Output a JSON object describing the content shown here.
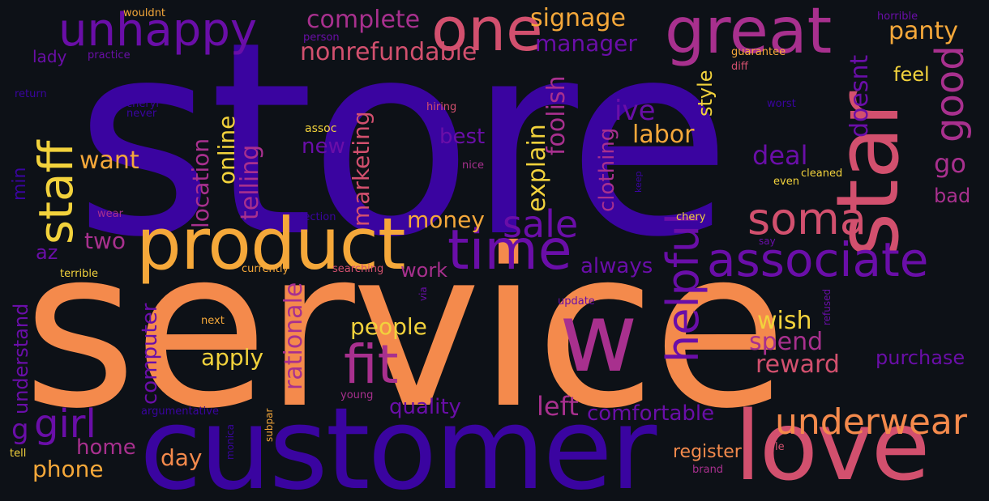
{
  "palette": {
    "background": "#0d1117",
    "deep_purple": "#3a04a0",
    "violet": "#6a0ea8",
    "magenta": "#a8308e",
    "pink": "#d2506e",
    "orange": "#f48a4c",
    "amber": "#f5a83a",
    "yellow": "#f2d23c"
  },
  "words": [
    {
      "text": "store",
      "color": "#3a04a0"
    },
    {
      "text": "service",
      "color": "#f48a4c"
    },
    {
      "text": "customer",
      "color": "#3a04a0"
    },
    {
      "text": "product",
      "color": "#f5a83a"
    },
    {
      "text": "star",
      "color": "#d2506e"
    },
    {
      "text": "love",
      "color": "#d2506e"
    },
    {
      "text": "w",
      "color": "#a8308e"
    },
    {
      "text": "great",
      "color": "#a8308e"
    },
    {
      "text": "one",
      "color": "#d2506e"
    },
    {
      "text": "unhappy",
      "color": "#6a0ea8"
    },
    {
      "text": "staff",
      "color": "#f2d23c"
    },
    {
      "text": "time",
      "color": "#6a0ea8"
    },
    {
      "text": "associate",
      "color": "#6a0ea8"
    },
    {
      "text": "soma",
      "color": "#d2506e"
    },
    {
      "text": "fit",
      "color": "#a8308e"
    },
    {
      "text": "helpful",
      "color": "#6a0ea8"
    },
    {
      "text": "underwear",
      "color": "#f48a4c"
    },
    {
      "text": "sale",
      "color": "#6a0ea8"
    },
    {
      "text": "girl",
      "color": "#6a0ea8"
    },
    {
      "text": "good",
      "color": "#a8308e"
    },
    {
      "text": "complete",
      "color": "#a8308e"
    },
    {
      "text": "signage",
      "color": "#f5a83a"
    },
    {
      "text": "manager",
      "color": "#6a0ea8"
    },
    {
      "text": "nonrefundable",
      "color": "#d2506e"
    },
    {
      "text": "panty",
      "color": "#f5a83a"
    },
    {
      "text": "feel",
      "color": "#f2d23c"
    },
    {
      "text": "doesnt",
      "color": "#6a0ea8"
    },
    {
      "text": "ive",
      "color": "#6a0ea8"
    },
    {
      "text": "labor",
      "color": "#f5a83a"
    },
    {
      "text": "deal",
      "color": "#6a0ea8"
    },
    {
      "text": "go",
      "color": "#a8308e"
    },
    {
      "text": "bad",
      "color": "#a8308e"
    },
    {
      "text": "style",
      "color": "#f2d23c"
    },
    {
      "text": "clothing",
      "color": "#a8308e"
    },
    {
      "text": "explain",
      "color": "#f2d23c"
    },
    {
      "text": "foolish",
      "color": "#a8308e"
    },
    {
      "text": "best",
      "color": "#6a0ea8"
    },
    {
      "text": "new",
      "color": "#6a0ea8"
    },
    {
      "text": "marketing",
      "color": "#d2506e"
    },
    {
      "text": "telling",
      "color": "#a8308e"
    },
    {
      "text": "online",
      "color": "#f2d23c"
    },
    {
      "text": "location",
      "color": "#a8308e"
    },
    {
      "text": "want",
      "color": "#f5a83a"
    },
    {
      "text": "money",
      "color": "#f5a83a"
    },
    {
      "text": "two",
      "color": "#a8308e"
    },
    {
      "text": "az",
      "color": "#6a0ea8"
    },
    {
      "text": "min",
      "color": "#3a04a0"
    },
    {
      "text": "lady",
      "color": "#6a0ea8"
    },
    {
      "text": "practice",
      "color": "#6a0ea8"
    },
    {
      "text": "wouldnt",
      "color": "#f5a83a"
    },
    {
      "text": "person",
      "color": "#6a0ea8"
    },
    {
      "text": "return",
      "color": "#3a04a0"
    },
    {
      "text": "cheryl",
      "color": "#3a04a0"
    },
    {
      "text": "never",
      "color": "#3a04a0"
    },
    {
      "text": "hiring",
      "color": "#d2506e"
    },
    {
      "text": "assoc",
      "color": "#f2d23c"
    },
    {
      "text": "nice",
      "color": "#a8308e"
    },
    {
      "text": "horrible",
      "color": "#6a0ea8"
    },
    {
      "text": "guarantee",
      "color": "#f5a83a"
    },
    {
      "text": "diff",
      "color": "#d2506e"
    },
    {
      "text": "worst",
      "color": "#3a04a0"
    },
    {
      "text": "cleaned",
      "color": "#f2d23c"
    },
    {
      "text": "even",
      "color": "#f2d23c"
    },
    {
      "text": "keep",
      "color": "#3a04a0"
    },
    {
      "text": "chery",
      "color": "#f2d23c"
    },
    {
      "text": "say",
      "color": "#6a0ea8"
    },
    {
      "text": "wear",
      "color": "#a8308e"
    },
    {
      "text": "selection",
      "color": "#3a04a0"
    },
    {
      "text": "terrible",
      "color": "#f2d23c"
    },
    {
      "text": "currently",
      "color": "#f5a83a"
    },
    {
      "text": "searching",
      "color": "#d2506e"
    },
    {
      "text": "via",
      "color": "#6a0ea8"
    },
    {
      "text": "update",
      "color": "#6a0ea8"
    },
    {
      "text": "refused",
      "color": "#6a0ea8"
    },
    {
      "text": "next",
      "color": "#f5a83a"
    },
    {
      "text": "young",
      "color": "#a8308e"
    },
    {
      "text": "subpar",
      "color": "#f5a83a"
    },
    {
      "text": "argumentative",
      "color": "#3a04a0"
    },
    {
      "text": "monica",
      "color": "#3a04a0"
    },
    {
      "text": "tell",
      "color": "#f2d23c"
    },
    {
      "text": "le",
      "color": "#d2506e"
    },
    {
      "text": "brand",
      "color": "#a8308e"
    },
    {
      "text": "always",
      "color": "#6a0ea8"
    },
    {
      "text": "work",
      "color": "#a8308e"
    },
    {
      "text": "people",
      "color": "#f2d23c"
    },
    {
      "text": "apply",
      "color": "#f2d23c"
    },
    {
      "text": "rationale",
      "color": "#a8308e"
    },
    {
      "text": "computer",
      "color": "#6a0ea8"
    },
    {
      "text": "understand",
      "color": "#6a0ea8"
    },
    {
      "text": "g",
      "color": "#6a0ea8"
    },
    {
      "text": "home",
      "color": "#a8308e"
    },
    {
      "text": "phone",
      "color": "#f5a83a"
    },
    {
      "text": "day",
      "color": "#f48a4c"
    },
    {
      "text": "quality",
      "color": "#6a0ea8"
    },
    {
      "text": "left",
      "color": "#a8308e"
    },
    {
      "text": "comfortable",
      "color": "#6a0ea8"
    },
    {
      "text": "wish",
      "color": "#f2d23c"
    },
    {
      "text": "spend",
      "color": "#a8308e"
    },
    {
      "text": "reward",
      "color": "#d2506e"
    },
    {
      "text": "purchase",
      "color": "#6a0ea8"
    },
    {
      "text": "register",
      "color": "#f48a4c"
    }
  ]
}
